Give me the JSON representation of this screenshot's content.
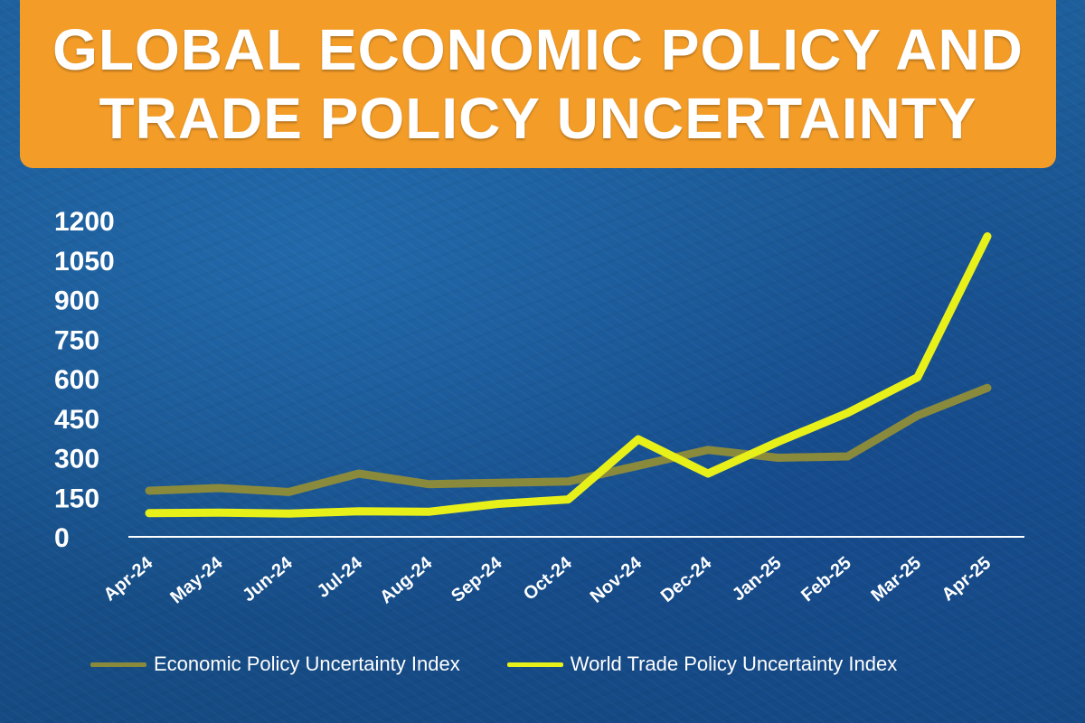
{
  "title_lines": [
    "GLOBAL ECONOMIC POLICY AND",
    "TRADE POLICY UNCERTAINTY"
  ],
  "chart_data": {
    "type": "line",
    "title": "GLOBAL ECONOMIC POLICY AND TRADE POLICY UNCERTAINTY",
    "categories": [
      "Apr-24",
      "May-24",
      "Jun-24",
      "Jul-24",
      "Aug-24",
      "Sep-24",
      "Oct-24",
      "Nov-24",
      "Dec-24",
      "Jan-25",
      "Feb-25",
      "Mar-25",
      "Apr-25"
    ],
    "yticks": [
      0,
      150,
      300,
      450,
      600,
      750,
      900,
      1050,
      1200
    ],
    "ylim": [
      0,
      1200
    ],
    "xlabel": "",
    "ylabel": "",
    "series": [
      {
        "name": "Economic Policy Uncertainty Index",
        "color": "#8a8a3c",
        "values": [
          175,
          185,
          170,
          240,
          200,
          205,
          210,
          270,
          330,
          300,
          305,
          460,
          565
        ]
      },
      {
        "name": "World Trade Policy Uncertainty Index",
        "color": "#e8f01a",
        "values": [
          90,
          92,
          88,
          97,
          95,
          125,
          142,
          370,
          240,
          360,
          470,
          605,
          1140
        ]
      }
    ],
    "legend_position": "bottom"
  },
  "colors": {
    "title_bg": "#f39c28",
    "background": "#1a5590",
    "text": "#ffffff"
  }
}
